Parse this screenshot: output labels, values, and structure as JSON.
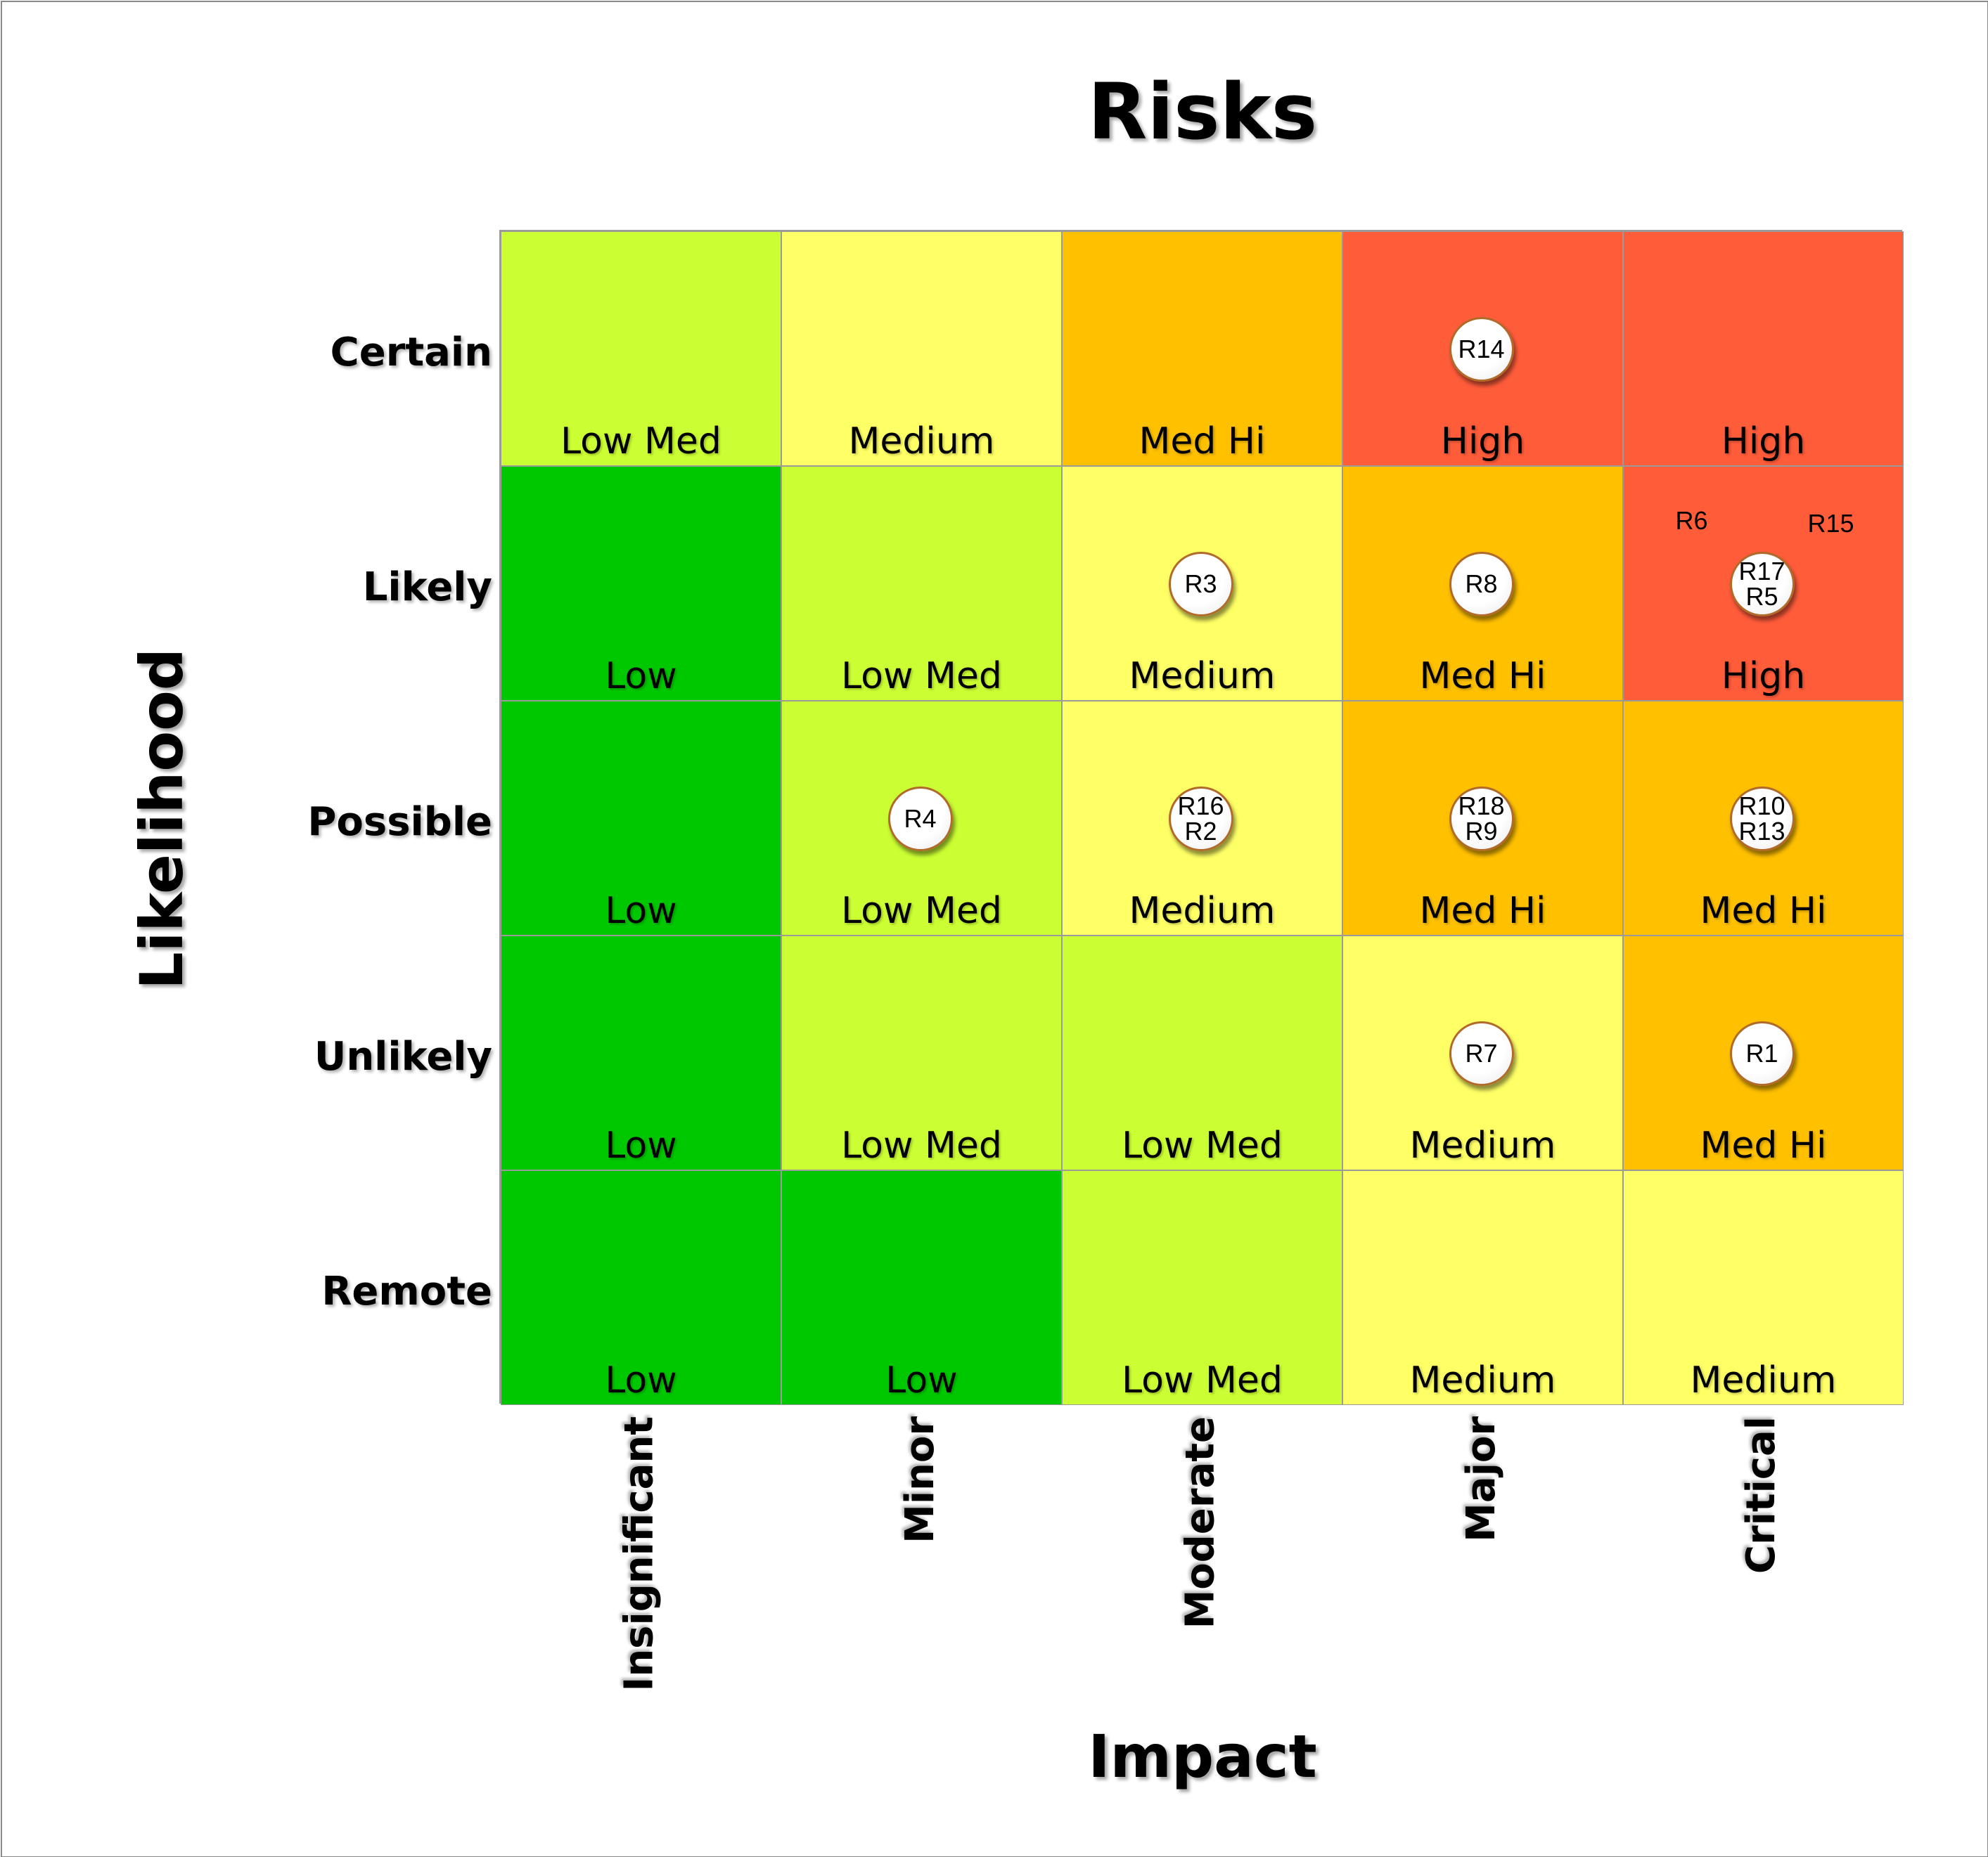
{
  "chart_data": {
    "type": "heatmap",
    "title": "Risks",
    "xlabel": "Impact",
    "ylabel": "Likelihood",
    "x_categories": [
      "Insignificant",
      "Minor",
      "Moderate",
      "Major",
      "Critical"
    ],
    "y_categories": [
      "Certain",
      "Likely",
      "Possible",
      "Unlikely",
      "Remote"
    ],
    "cells": [
      [
        "Low Med",
        "Medium",
        "Med Hi",
        "High",
        "High"
      ],
      [
        "Low",
        "Low Med",
        "Medium",
        "Med Hi",
        "High"
      ],
      [
        "Low",
        "Low Med",
        "Medium",
        "Med Hi",
        "Med Hi"
      ],
      [
        "Low",
        "Low Med",
        "Low Med",
        "Medium",
        "Med Hi"
      ],
      [
        "Low",
        "Low",
        "Low Med",
        "Medium",
        "Medium"
      ]
    ],
    "level_colors": {
      "Low": "#00c800",
      "Low Med": "#ccff33",
      "Medium": "#ffff66",
      "Med Hi": "#ffc000",
      "High": "#ff5c3a"
    },
    "risks": [
      {
        "ids": [
          "R14"
        ],
        "likelihood": "Certain",
        "impact": "Major"
      },
      {
        "ids": [
          "R3"
        ],
        "likelihood": "Likely",
        "impact": "Moderate"
      },
      {
        "ids": [
          "R8"
        ],
        "likelihood": "Likely",
        "impact": "Major"
      },
      {
        "ids": [
          "R17",
          "R5"
        ],
        "likelihood": "Likely",
        "impact": "Critical"
      },
      {
        "ids": [
          "R4"
        ],
        "likelihood": "Possible",
        "impact": "Minor"
      },
      {
        "ids": [
          "R16",
          "R2"
        ],
        "likelihood": "Possible",
        "impact": "Moderate"
      },
      {
        "ids": [
          "R18",
          "R9"
        ],
        "likelihood": "Possible",
        "impact": "Major"
      },
      {
        "ids": [
          "R10",
          "R13"
        ],
        "likelihood": "Possible",
        "impact": "Critical"
      },
      {
        "ids": [
          "R7"
        ],
        "likelihood": "Unlikely",
        "impact": "Major"
      },
      {
        "ids": [
          "R1"
        ],
        "likelihood": "Unlikely",
        "impact": "Critical"
      }
    ],
    "unmarked_risks": [
      {
        "id": "R6",
        "likelihood": "Likely",
        "impact": "Critical"
      },
      {
        "id": "R15",
        "likelihood": "Likely",
        "impact": "Critical"
      }
    ]
  }
}
